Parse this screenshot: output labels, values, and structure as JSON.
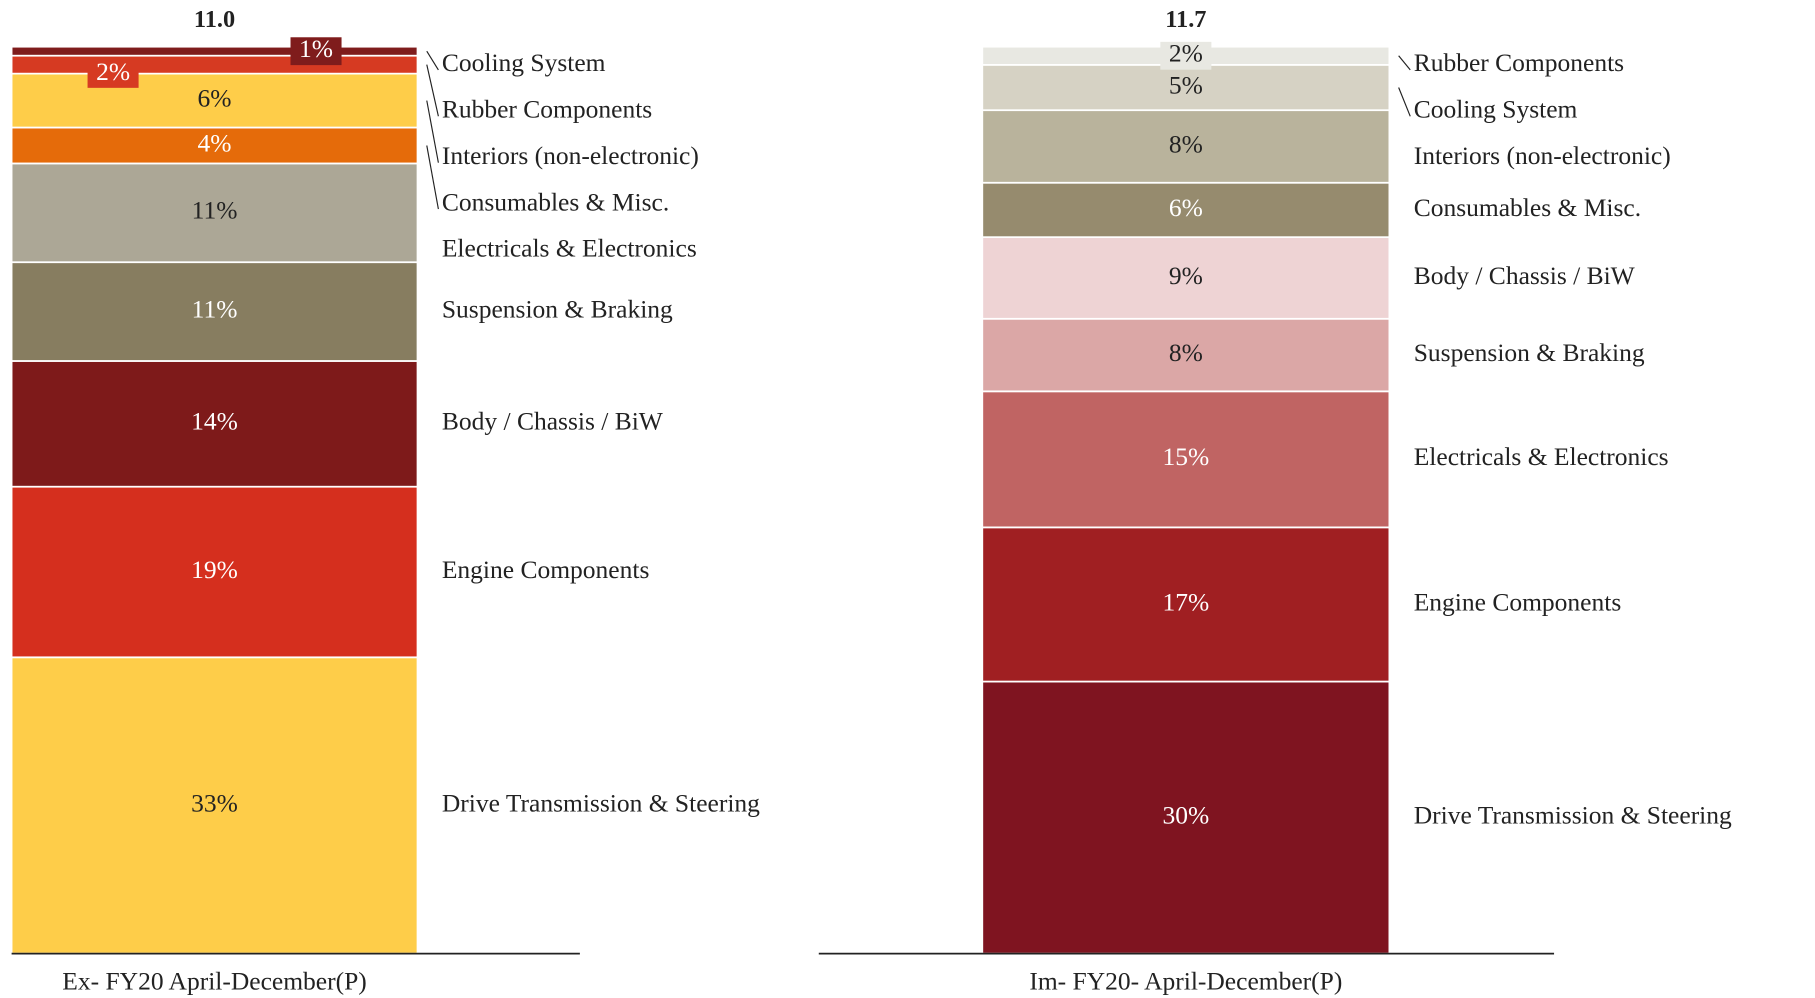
{
  "chart_data": [
    {
      "type": "bar",
      "stacked": true,
      "categories": [
        "Ex- FY20 April-December(P)"
      ],
      "total": {
        "value": 11.0,
        "label": "11.0"
      },
      "ylim": [
        0,
        101
      ],
      "series": [
        {
          "name": "Drive Transmission & Steering",
          "color": "#fecd49",
          "label_color": "#222222",
          "values": [
            33
          ],
          "value_labels": [
            "33%"
          ]
        },
        {
          "name": "Engine Components",
          "color": "#d52f1e",
          "label_color": "#ffffff",
          "values": [
            19
          ],
          "value_labels": [
            "19%"
          ]
        },
        {
          "name": "Body / Chassis / BiW",
          "color": "#7e1a1a",
          "label_color": "#ffffff",
          "values": [
            14
          ],
          "value_labels": [
            "14%"
          ]
        },
        {
          "name": "Suspension & Braking",
          "color": "#877d60",
          "label_color": "#ffffff",
          "values": [
            11
          ],
          "value_labels": [
            "11%"
          ]
        },
        {
          "name": "Electricals & Electronics",
          "color": "#aca796",
          "label_color": "#222222",
          "values": [
            11
          ],
          "value_labels": [
            "11%"
          ]
        },
        {
          "name": "Consumables & Misc.",
          "color": "#e56b0a",
          "label_color": "#ffffff",
          "values": [
            4
          ],
          "value_labels": [
            "4%"
          ]
        },
        {
          "name": "Interiors (non-electronic)",
          "color": "#fecd49",
          "label_color": "#222222",
          "values": [
            6
          ],
          "value_labels": [
            "6%"
          ]
        },
        {
          "name": "Rubber Components",
          "color": "#d63a22",
          "label_color": "#ffffff",
          "values": [
            2
          ],
          "value_labels": [
            "2%"
          ]
        },
        {
          "name": "Cooling System",
          "color": "#7f1c1c",
          "label_color": "#ffffff",
          "values": [
            1
          ],
          "value_labels": [
            "1%"
          ]
        }
      ]
    },
    {
      "type": "bar",
      "stacked": true,
      "categories": [
        "Im- FY20- April-December(P)"
      ],
      "total": {
        "value": 11.7,
        "label": "11.7"
      },
      "ylim": [
        0,
        100
      ],
      "series": [
        {
          "name": "Drive Transmission & Steering",
          "color": "#7f1420",
          "label_color": "#ffffff",
          "values": [
            30
          ],
          "value_labels": [
            "30%"
          ]
        },
        {
          "name": "Engine Components",
          "color": "#a01f22",
          "label_color": "#ffffff",
          "values": [
            17
          ],
          "value_labels": [
            "17%"
          ]
        },
        {
          "name": "Electricals & Electronics",
          "color": "#c06463",
          "label_color": "#ffffff",
          "values": [
            15
          ],
          "value_labels": [
            "15%"
          ]
        },
        {
          "name": "Suspension & Braking",
          "color": "#dba7a6",
          "label_color": "#222222",
          "values": [
            8
          ],
          "value_labels": [
            "8%"
          ]
        },
        {
          "name": "Body / Chassis / BiW",
          "color": "#eed3d4",
          "label_color": "#222222",
          "values": [
            9
          ],
          "value_labels": [
            "9%"
          ]
        },
        {
          "name": "Consumables & Misc.",
          "color": "#968b6e",
          "label_color": "#ffffff",
          "values": [
            6
          ],
          "value_labels": [
            "6%"
          ]
        },
        {
          "name": "Interiors (non-electronic)",
          "color": "#b9b39c",
          "label_color": "#222222",
          "values": [
            8
          ],
          "value_labels": [
            "8%"
          ]
        },
        {
          "name": "Cooling System",
          "color": "#d6d2c4",
          "label_color": "#222222",
          "values": [
            5
          ],
          "value_labels": [
            "5%"
          ]
        },
        {
          "name": "Rubber Components",
          "color": "#e8e8e2",
          "label_color": "#222222",
          "values": [
            2
          ],
          "value_labels": [
            "2%"
          ]
        }
      ]
    }
  ]
}
